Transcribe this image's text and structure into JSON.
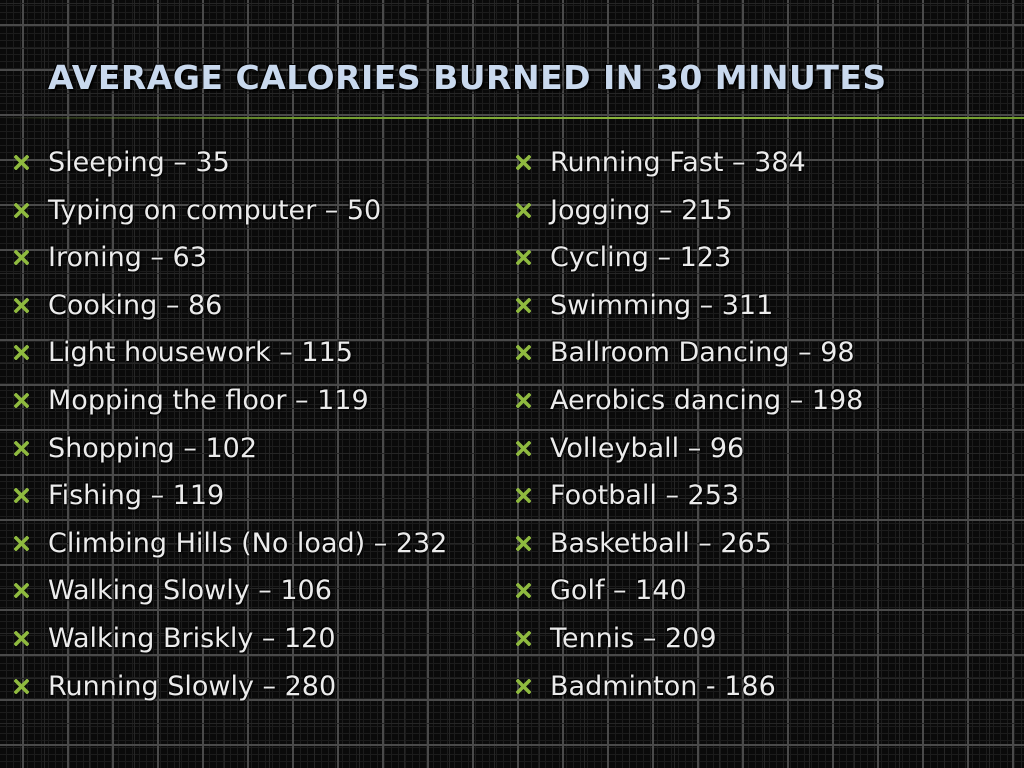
{
  "slide": {
    "title": "Average Calories Burned in 30 Minutes",
    "bullet_icon": "x-mark-bullet-icon",
    "bullet_color": "#8fba3f",
    "left_items": [
      "Sleeping – 35",
      "Typing on computer – 50",
      "Ironing – 63",
      "Cooking – 86",
      "Light housework – 115",
      "Mopping the floor – 119",
      "Shopping – 102",
      "Fishing – 119",
      "Climbing Hills (No load) – 232",
      "Walking Slowly – 106",
      "Walking Briskly – 120",
      "Running Slowly – 280"
    ],
    "right_items": [
      "Running Fast – 384",
      "Jogging – 215",
      "Cycling – 123",
      "Swimming – 311",
      "Ballroom Dancing – 98",
      "Aerobics dancing – 198",
      "Volleyball – 96",
      "Football – 253",
      "Basketball – 265",
      "Golf – 140",
      "Tennis – 209",
      "Badminton - 186"
    ]
  }
}
